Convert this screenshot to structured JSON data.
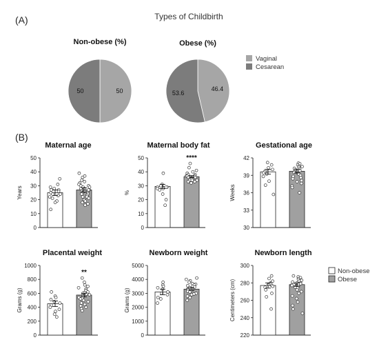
{
  "figure": {
    "panel_a_label": "(A)",
    "panel_b_label": "(B)",
    "panel_a_title": "Types of Childbirth"
  },
  "colors": {
    "vaginal": "#a6a6a6",
    "cesarean": "#7c7c7c",
    "obese_bar": "#a0a0a0",
    "nonobese_bar": "#ffffff",
    "axis": "#222222"
  },
  "legend_pie": {
    "items": [
      {
        "label": "Vaginal",
        "color": "#a6a6a6"
      },
      {
        "label": "Cesarean",
        "color": "#7c7c7c"
      }
    ]
  },
  "legend_bars": {
    "items": [
      {
        "label": "Non-obese",
        "color": "#ffffff"
      },
      {
        "label": "Obese",
        "color": "#a0a0a0"
      }
    ]
  },
  "chart_data": [
    {
      "type": "pie",
      "title": "Non-obese (%)",
      "labels": [
        "Vaginal",
        "Cesarean"
      ],
      "values": [
        50,
        50
      ],
      "value_labels": [
        "50",
        "50"
      ]
    },
    {
      "type": "pie",
      "title": "Obese (%)",
      "labels": [
        "Vaginal",
        "Cesarean"
      ],
      "values": [
        46.4,
        53.6
      ],
      "value_labels": [
        "46.4",
        "53.6"
      ]
    },
    {
      "type": "bar",
      "title": "Maternal age",
      "ylabel": "Years",
      "ylim": [
        0,
        50
      ],
      "yticks": [
        "0",
        "10",
        "20",
        "30",
        "40",
        "50"
      ],
      "categories": [
        "Non-obese",
        "Obese"
      ],
      "values": [
        25,
        27
      ],
      "errors": [
        2,
        1.5
      ],
      "significance": "",
      "points": [
        [
          35,
          31,
          29,
          28,
          27,
          27,
          26,
          25,
          24,
          24,
          23,
          22,
          21,
          19,
          18,
          13
        ],
        [
          39,
          37,
          36,
          34,
          33,
          32,
          31,
          30,
          30,
          29,
          29,
          28,
          28,
          27,
          27,
          26,
          26,
          25,
          25,
          24,
          24,
          23,
          22,
          22,
          21,
          20,
          19,
          18,
          17,
          16
        ]
      ]
    },
    {
      "type": "bar",
      "title": "Maternal body fat",
      "ylabel": "%",
      "ylim": [
        0,
        50
      ],
      "yticks": [
        "0",
        "10",
        "20",
        "30",
        "40",
        "50"
      ],
      "categories": [
        "Non-obese",
        "Obese"
      ],
      "values": [
        29.5,
        36.5
      ],
      "errors": [
        1.5,
        0.8
      ],
      "significance": "****",
      "points": [
        [
          39,
          31,
          30,
          29,
          29,
          29,
          28,
          28,
          27,
          24,
          20,
          16
        ],
        [
          46,
          43,
          41,
          40,
          39,
          38,
          38,
          37,
          37,
          37,
          36,
          36,
          36,
          35,
          35,
          35,
          34,
          34,
          34,
          33,
          33,
          32
        ]
      ]
    },
    {
      "type": "bar",
      "title": "Gestational age",
      "ylabel": "Weeks",
      "ylim": [
        30,
        42
      ],
      "yticks": [
        "30",
        "33",
        "36",
        "39",
        "42"
      ],
      "categories": [
        "Non-obese",
        "Obese"
      ],
      "values": [
        39.6,
        39.7
      ],
      "errors": [
        0.4,
        0.3
      ],
      "significance": "",
      "points": [
        [
          41.2,
          40.8,
          40.3,
          40.0,
          39.8,
          39.6,
          39.4,
          39.2,
          38.8,
          38.0,
          37.3,
          35.7
        ],
        [
          41.1,
          41.0,
          40.8,
          40.6,
          40.5,
          40.4,
          40.2,
          40.1,
          40.0,
          39.9,
          39.8,
          39.7,
          39.6,
          39.5,
          39.4,
          39.3,
          39.2,
          39.0,
          38.8,
          38.6,
          38.4,
          38.1,
          37.9,
          37.6,
          37.2,
          36.9,
          36.0
        ]
      ]
    },
    {
      "type": "bar",
      "title": "Placental weight",
      "ylabel": "Grams (g)",
      "ylim": [
        0,
        1000
      ],
      "yticks": [
        "0",
        "200",
        "400",
        "600",
        "800",
        "1000"
      ],
      "categories": [
        "Non-obese",
        "Obese"
      ],
      "values": [
        450,
        575
      ],
      "errors": [
        40,
        25
      ],
      "significance": "**",
      "points": [
        [
          620,
          560,
          540,
          510,
          480,
          460,
          430,
          400,
          370,
          340,
          300,
          260
        ],
        [
          820,
          760,
          720,
          700,
          680,
          660,
          640,
          620,
          610,
          600,
          590,
          580,
          570,
          560,
          550,
          540,
          530,
          520,
          500,
          480,
          460,
          440,
          420,
          400,
          380,
          350
        ]
      ]
    },
    {
      "type": "bar",
      "title": "Newborn weight",
      "ylabel": "Grams (g)",
      "ylim": [
        0,
        5000
      ],
      "yticks": [
        "0",
        "1000",
        "2000",
        "3000",
        "4000",
        "5000"
      ],
      "categories": [
        "Non-obese",
        "Obese"
      ],
      "values": [
        3100,
        3300
      ],
      "errors": [
        200,
        100
      ],
      "significance": "",
      "points": [
        [
          3800,
          3600,
          3500,
          3400,
          3300,
          3100,
          3000,
          2900,
          2700,
          2600,
          2300
        ],
        [
          4100,
          4000,
          3900,
          3800,
          3700,
          3650,
          3600,
          3550,
          3500,
          3450,
          3400,
          3350,
          3300,
          3250,
          3200,
          3150,
          3100,
          3000,
          2950,
          2900,
          2800,
          2700,
          2500
        ]
      ]
    },
    {
      "type": "bar",
      "title": "Newborn length",
      "ylabel": "Centimeters (cm)",
      "ylim": [
        220,
        300
      ],
      "yticks": [
        "220",
        "240",
        "260",
        "280",
        "300"
      ],
      "categories": [
        "Non-obese",
        "Obese"
      ],
      "values": [
        277,
        278
      ],
      "errors": [
        3,
        2
      ],
      "significance": "",
      "points": [
        [
          288,
          285,
          282,
          280,
          279,
          278,
          277,
          276,
          275,
          272,
          268,
          264,
          250
        ],
        [
          288,
          287,
          286,
          285,
          284,
          283,
          282,
          281,
          280,
          280,
          279,
          279,
          278,
          278,
          277,
          276,
          275,
          274,
          272,
          270,
          268,
          265,
          262,
          258,
          254,
          250,
          245
        ]
      ]
    }
  ]
}
